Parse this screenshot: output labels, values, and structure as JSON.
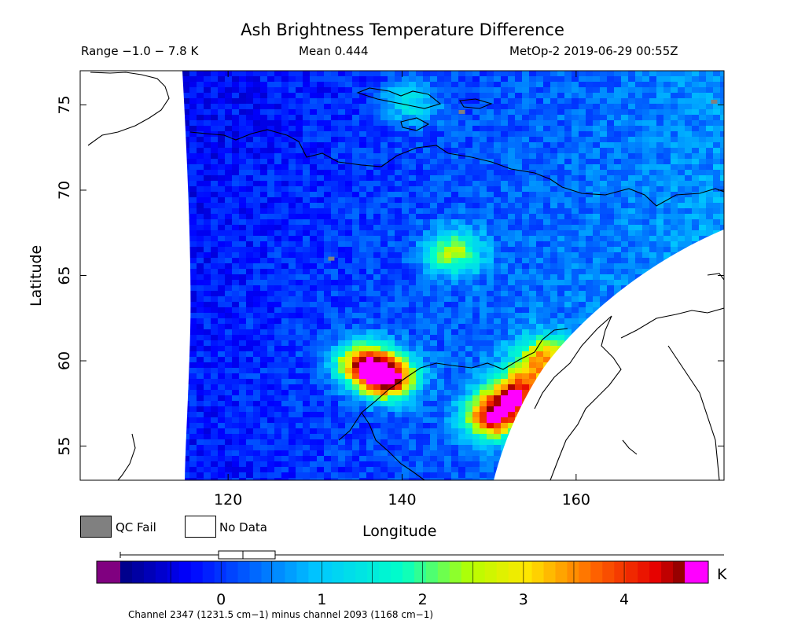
{
  "header": {
    "title": "Ash Brightness Temperature Difference",
    "range": "Range −1.0 − 7.8 K",
    "mean": "Mean 0.444",
    "satellite_time": "MetOp-2 2019-06-29 00:55Z"
  },
  "chart_data": {
    "type": "heatmap",
    "title": "Ash Brightness Temperature Difference",
    "xlabel": "Longitude",
    "ylabel": "Latitude",
    "xlim": [
      103,
      177
    ],
    "ylim": [
      53,
      77
    ],
    "x_ticks": [
      120,
      140,
      160
    ],
    "y_ticks": [
      55,
      60,
      65,
      70,
      75
    ],
    "colorbar": {
      "unit": "K",
      "min": -1.0,
      "max": 4.6,
      "ticks": [
        0,
        1,
        2,
        3,
        4
      ],
      "under_color": "#800080",
      "over_color": "#ff00ff"
    },
    "hotspots": [
      {
        "lon": 138,
        "lat": 59.2,
        "value": 4.8
      },
      {
        "lon": 135,
        "lat": 60.0,
        "value": 3.8
      },
      {
        "lon": 150,
        "lat": 56.9,
        "value": 4.5
      },
      {
        "lon": 153,
        "lat": 58.3,
        "value": 3.9
      },
      {
        "lon": 156,
        "lat": 60.3,
        "value": 3.3
      },
      {
        "lon": 145.5,
        "lat": 66.5,
        "value": 2.6
      },
      {
        "lon": 140.5,
        "lat": 75.3,
        "value": 1.6
      }
    ]
  },
  "legend": {
    "qc_fail": "QC Fail",
    "no_data": "No Data",
    "qc_color": "#808080"
  },
  "colorbar_labels": [
    "0",
    "1",
    "2",
    "3",
    "4"
  ],
  "footnote": "Channel 2347 (1231.5 cm−1) minus channel 2093 (1168 cm−1)"
}
